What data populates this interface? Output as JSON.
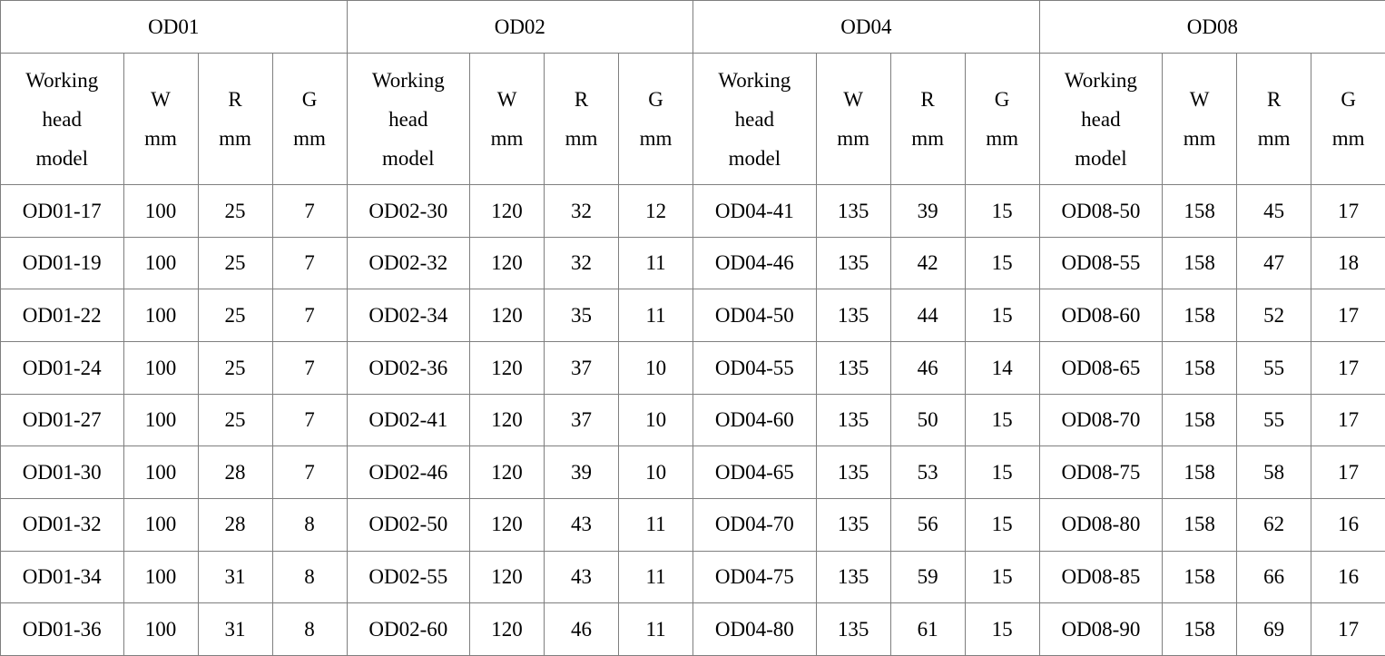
{
  "colors": {
    "background": "#ffffff",
    "border": "#7f7f7f",
    "text": "#000000"
  },
  "table": {
    "column_keys": [
      "model",
      "w",
      "r",
      "g"
    ],
    "groups": [
      {
        "name": "OD01",
        "headers": {
          "model": "Working\nhead\nmodel",
          "w": "W\nmm",
          "r": "R\nmm",
          "g": "G\nmm"
        },
        "rows": [
          {
            "model": "OD01-17",
            "w": "100",
            "r": "25",
            "g": "7"
          },
          {
            "model": "OD01-19",
            "w": "100",
            "r": "25",
            "g": "7"
          },
          {
            "model": "OD01-22",
            "w": "100",
            "r": "25",
            "g": "7"
          },
          {
            "model": "OD01-24",
            "w": "100",
            "r": "25",
            "g": "7"
          },
          {
            "model": "OD01-27",
            "w": "100",
            "r": "25",
            "g": "7"
          },
          {
            "model": "OD01-30",
            "w": "100",
            "r": "28",
            "g": "7"
          },
          {
            "model": "OD01-32",
            "w": "100",
            "r": "28",
            "g": "8"
          },
          {
            "model": "OD01-34",
            "w": "100",
            "r": "31",
            "g": "8"
          },
          {
            "model": "OD01-36",
            "w": "100",
            "r": "31",
            "g": "8"
          }
        ]
      },
      {
        "name": "OD02",
        "headers": {
          "model": "Working\nhead\nmodel",
          "w": "W\nmm",
          "r": "R\nmm",
          "g": "G\nmm"
        },
        "rows": [
          {
            "model": "OD02-30",
            "w": "120",
            "r": "32",
            "g": "12"
          },
          {
            "model": "OD02-32",
            "w": "120",
            "r": "32",
            "g": "11"
          },
          {
            "model": "OD02-34",
            "w": "120",
            "r": "35",
            "g": "11"
          },
          {
            "model": "OD02-36",
            "w": "120",
            "r": "37",
            "g": "10"
          },
          {
            "model": "OD02-41",
            "w": "120",
            "r": "37",
            "g": "10"
          },
          {
            "model": "OD02-46",
            "w": "120",
            "r": "39",
            "g": "10"
          },
          {
            "model": "OD02-50",
            "w": "120",
            "r": "43",
            "g": "11"
          },
          {
            "model": "OD02-55",
            "w": "120",
            "r": "43",
            "g": "11"
          },
          {
            "model": "OD02-60",
            "w": "120",
            "r": "46",
            "g": "11"
          }
        ]
      },
      {
        "name": "OD04",
        "headers": {
          "model": "Working\nhead\nmodel",
          "w": "W\nmm",
          "r": "R\nmm",
          "g": "G\nmm"
        },
        "rows": [
          {
            "model": "OD04-41",
            "w": "135",
            "r": "39",
            "g": "15"
          },
          {
            "model": "OD04-46",
            "w": "135",
            "r": "42",
            "g": "15"
          },
          {
            "model": "OD04-50",
            "w": "135",
            "r": "44",
            "g": "15"
          },
          {
            "model": "OD04-55",
            "w": "135",
            "r": "46",
            "g": "14"
          },
          {
            "model": "OD04-60",
            "w": "135",
            "r": "50",
            "g": "15"
          },
          {
            "model": "OD04-65",
            "w": "135",
            "r": "53",
            "g": "15"
          },
          {
            "model": "OD04-70",
            "w": "135",
            "r": "56",
            "g": "15"
          },
          {
            "model": "OD04-75",
            "w": "135",
            "r": "59",
            "g": "15"
          },
          {
            "model": "OD04-80",
            "w": "135",
            "r": "61",
            "g": "15"
          }
        ]
      },
      {
        "name": "OD08",
        "headers": {
          "model": "Working\nhead\nmodel",
          "w": "W\nmm",
          "r": "R\nmm",
          "g": "G\nmm"
        },
        "rows": [
          {
            "model": "OD08-50",
            "w": "158",
            "r": "45",
            "g": "17"
          },
          {
            "model": "OD08-55",
            "w": "158",
            "r": "47",
            "g": "18"
          },
          {
            "model": "OD08-60",
            "w": "158",
            "r": "52",
            "g": "17"
          },
          {
            "model": "OD08-65",
            "w": "158",
            "r": "55",
            "g": "17"
          },
          {
            "model": "OD08-70",
            "w": "158",
            "r": "55",
            "g": "17"
          },
          {
            "model": "OD08-75",
            "w": "158",
            "r": "58",
            "g": "17"
          },
          {
            "model": "OD08-80",
            "w": "158",
            "r": "62",
            "g": "16"
          },
          {
            "model": "OD08-85",
            "w": "158",
            "r": "66",
            "g": "16"
          },
          {
            "model": "OD08-90",
            "w": "158",
            "r": "69",
            "g": "17"
          }
        ]
      }
    ]
  },
  "chart_data": {
    "type": "table",
    "title": "",
    "group_headers": [
      "OD01",
      "OD02",
      "OD04",
      "OD08"
    ],
    "column_headers_per_group": [
      "Working head model",
      "W mm",
      "R mm",
      "G mm"
    ],
    "series": [
      {
        "name": "OD01",
        "rows": [
          [
            "OD01-17",
            100,
            25,
            7
          ],
          [
            "OD01-19",
            100,
            25,
            7
          ],
          [
            "OD01-22",
            100,
            25,
            7
          ],
          [
            "OD01-24",
            100,
            25,
            7
          ],
          [
            "OD01-27",
            100,
            25,
            7
          ],
          [
            "OD01-30",
            100,
            28,
            7
          ],
          [
            "OD01-32",
            100,
            28,
            8
          ],
          [
            "OD01-34",
            100,
            31,
            8
          ],
          [
            "OD01-36",
            100,
            31,
            8
          ]
        ]
      },
      {
        "name": "OD02",
        "rows": [
          [
            "OD02-30",
            120,
            32,
            12
          ],
          [
            "OD02-32",
            120,
            32,
            11
          ],
          [
            "OD02-34",
            120,
            35,
            11
          ],
          [
            "OD02-36",
            120,
            37,
            10
          ],
          [
            "OD02-41",
            120,
            37,
            10
          ],
          [
            "OD02-46",
            120,
            39,
            10
          ],
          [
            "OD02-50",
            120,
            43,
            11
          ],
          [
            "OD02-55",
            120,
            43,
            11
          ],
          [
            "OD02-60",
            120,
            46,
            11
          ]
        ]
      },
      {
        "name": "OD04",
        "rows": [
          [
            "OD04-41",
            135,
            39,
            15
          ],
          [
            "OD04-46",
            135,
            42,
            15
          ],
          [
            "OD04-50",
            135,
            44,
            15
          ],
          [
            "OD04-55",
            135,
            46,
            14
          ],
          [
            "OD04-60",
            135,
            50,
            15
          ],
          [
            "OD04-65",
            135,
            53,
            15
          ],
          [
            "OD04-70",
            135,
            56,
            15
          ],
          [
            "OD04-75",
            135,
            59,
            15
          ],
          [
            "OD04-80",
            135,
            61,
            15
          ]
        ]
      },
      {
        "name": "OD08",
        "rows": [
          [
            "OD08-50",
            158,
            45,
            17
          ],
          [
            "OD08-55",
            158,
            47,
            18
          ],
          [
            "OD08-60",
            158,
            52,
            17
          ],
          [
            "OD08-65",
            158,
            55,
            17
          ],
          [
            "OD08-70",
            158,
            55,
            17
          ],
          [
            "OD08-75",
            158,
            58,
            17
          ],
          [
            "OD08-80",
            158,
            62,
            16
          ],
          [
            "OD08-85",
            158,
            66,
            16
          ],
          [
            "OD08-90",
            158,
            69,
            17
          ]
        ]
      }
    ]
  }
}
